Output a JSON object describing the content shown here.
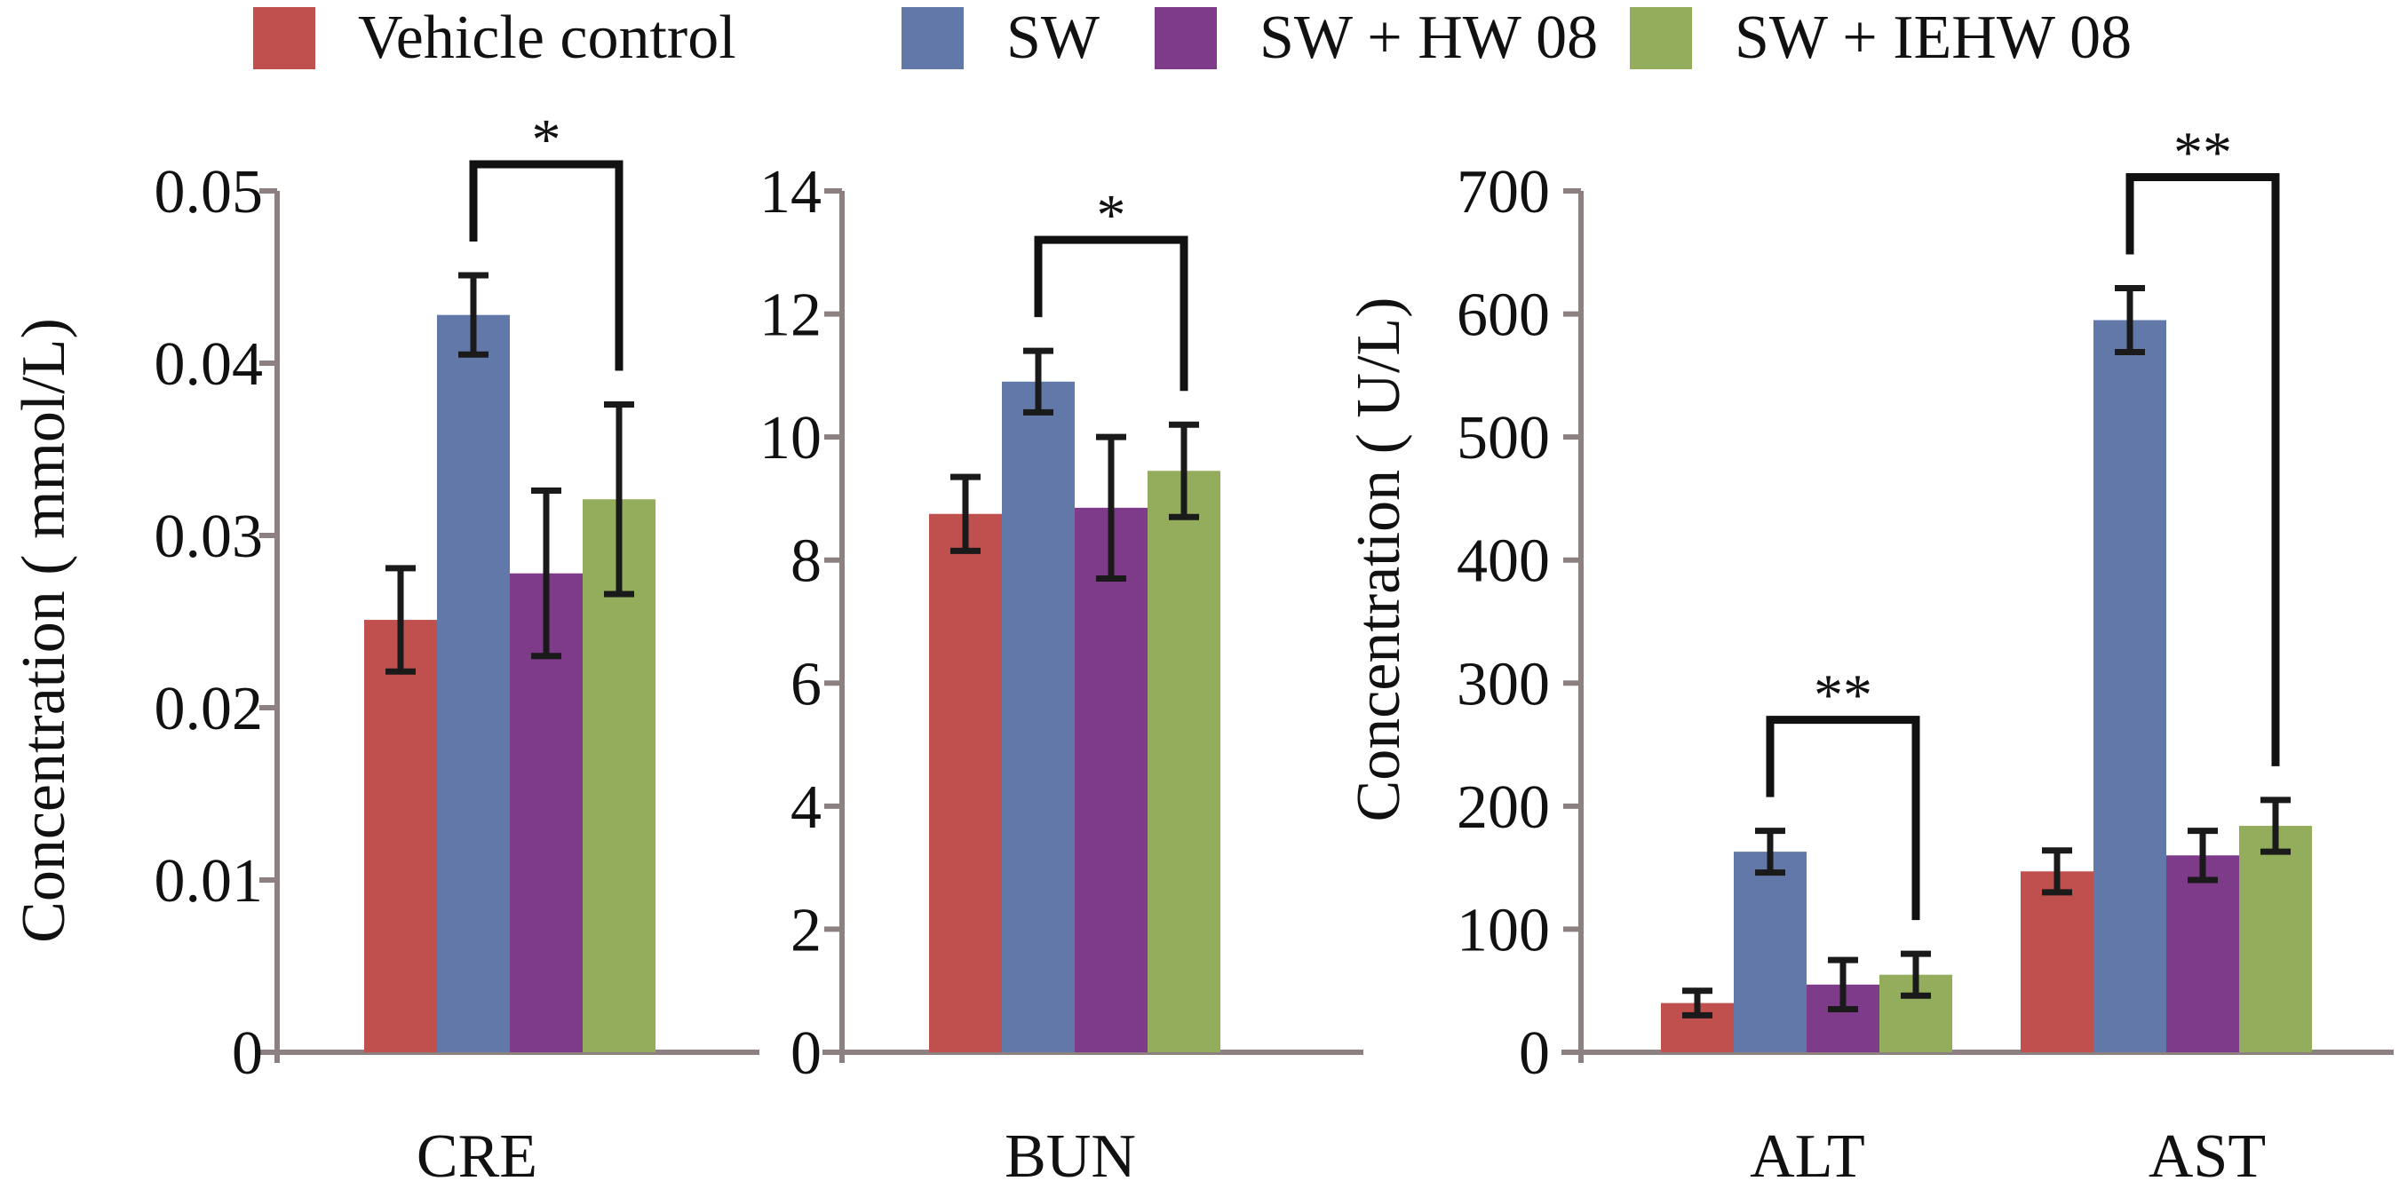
{
  "legend": [
    {
      "label": "Vehicle control",
      "color": "#c0504d"
    },
    {
      "label": "SW",
      "color": "#6178a8"
    },
    {
      "label": "SW + HW 08",
      "color": "#7e3b8a"
    },
    {
      "label": "SW + IEHW 08",
      "color": "#94ad5c"
    }
  ],
  "chart_data": [
    {
      "type": "bar",
      "ylabel": "Concentration ( mmol/L)",
      "ylim": [
        0,
        0.05
      ],
      "yticks": [
        "0",
        "0.01",
        "0.02",
        "0.03",
        "0.04",
        "0.05"
      ],
      "categories": [
        "CRE"
      ],
      "series": [
        {
          "name": "Vehicle control",
          "values": [
            0.0251
          ],
          "error": [
            0.003
          ]
        },
        {
          "name": "SW",
          "values": [
            0.0428
          ],
          "error": [
            0.0023
          ]
        },
        {
          "name": "SW + HW 08",
          "values": [
            0.0278
          ],
          "error": [
            0.0048
          ]
        },
        {
          "name": "SW + IEHW 08",
          "values": [
            0.0321
          ],
          "error": [
            0.0055
          ]
        }
      ],
      "significance": [
        {
          "category": "CRE",
          "from": "SW",
          "to": "SW + IEHW 08",
          "label": "*"
        }
      ]
    },
    {
      "type": "bar",
      "ylabel": "",
      "ylim": [
        0,
        14
      ],
      "yticks": [
        "0",
        "2",
        "4",
        "6",
        "8",
        "10",
        "12",
        "14"
      ],
      "categories": [
        "BUN"
      ],
      "series": [
        {
          "name": "Vehicle control",
          "values": [
            8.75
          ],
          "error": [
            0.6
          ]
        },
        {
          "name": "SW",
          "values": [
            10.9
          ],
          "error": [
            0.5
          ]
        },
        {
          "name": "SW + HW 08",
          "values": [
            8.85
          ],
          "error": [
            1.15
          ]
        },
        {
          "name": "SW + IEHW 08",
          "values": [
            9.45
          ],
          "error": [
            0.75
          ]
        }
      ],
      "significance": [
        {
          "category": "BUN",
          "from": "SW",
          "to": "SW + IEHW 08",
          "label": "*"
        }
      ]
    },
    {
      "type": "bar",
      "ylabel": "Concentration ( U/L)",
      "ylim": [
        0,
        700
      ],
      "yticks": [
        "0",
        "100",
        "200",
        "300",
        "400",
        "500",
        "600",
        "700"
      ],
      "categories": [
        "ALT",
        "AST"
      ],
      "series": [
        {
          "name": "Vehicle control",
          "values": [
            40,
            147
          ],
          "error": [
            10,
            17
          ]
        },
        {
          "name": "SW",
          "values": [
            163,
            595
          ],
          "error": [
            17,
            26
          ]
        },
        {
          "name": "SW + HW 08",
          "values": [
            55,
            160
          ],
          "error": [
            20,
            20
          ]
        },
        {
          "name": "SW + IEHW 08",
          "values": [
            63,
            184
          ],
          "error": [
            17,
            21
          ]
        }
      ],
      "significance": [
        {
          "category": "ALT",
          "from": "SW",
          "to": "SW + IEHW 08",
          "label": "**"
        },
        {
          "category": "AST",
          "from": "SW",
          "to": "SW + IEHW 08",
          "label": "**"
        }
      ]
    }
  ]
}
